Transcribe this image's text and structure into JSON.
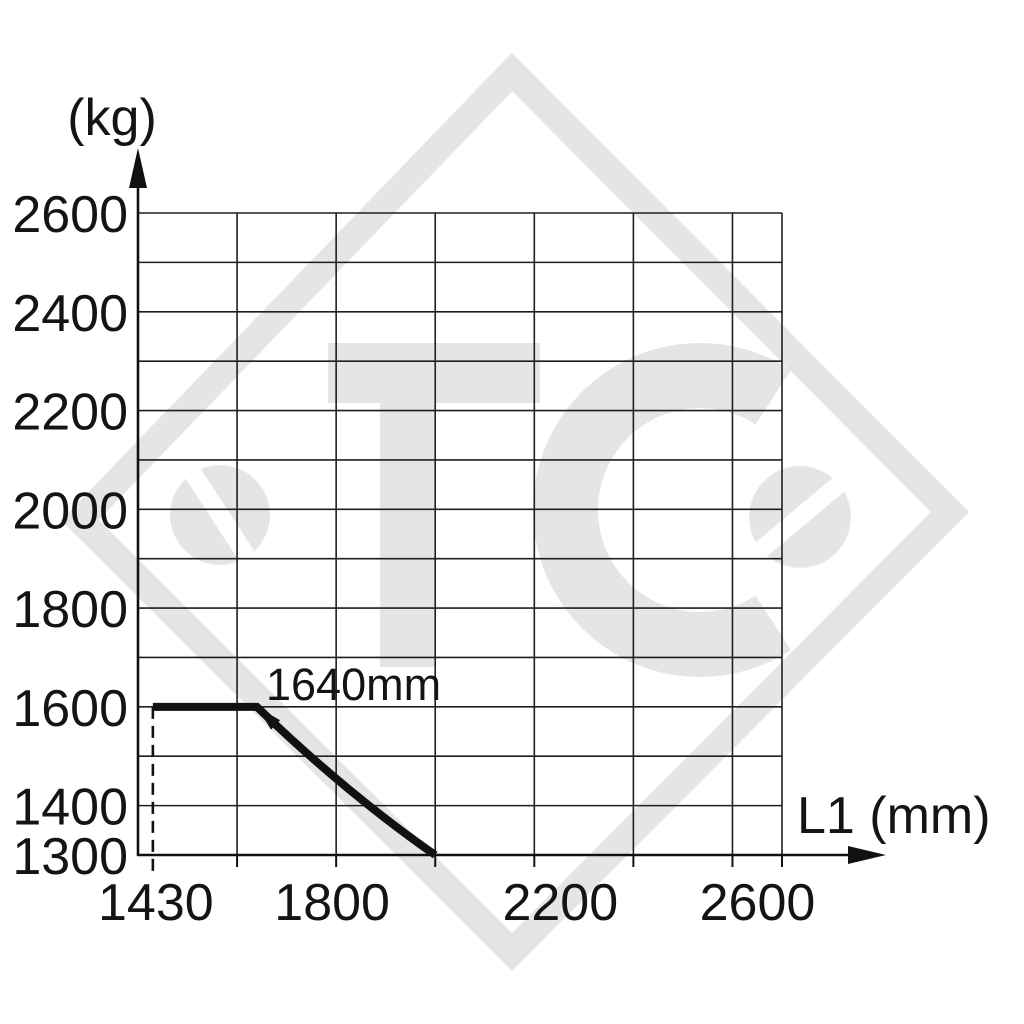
{
  "page": {
    "background": "#ffffff"
  },
  "watermark": {
    "text": "TC",
    "color": "#e5e5e7",
    "elements": [
      "diamond-outline",
      "letter-T",
      "letter-C",
      "slotted-screw-head-left",
      "slotted-screw-head-right"
    ]
  },
  "chart_data": {
    "type": "line",
    "title": "",
    "xlabel": "L1 (mm)",
    "ylabel": "(kg)",
    "xlim": [
      1400,
      2700
    ],
    "ylim": [
      1300,
      2600
    ],
    "grid": true,
    "legend": false,
    "x_gridlines_mm": [
      1400,
      1600,
      1800,
      2000,
      2200,
      2400,
      2600,
      2700
    ],
    "y_gridlines_kg": [
      1300,
      1400,
      1500,
      1600,
      1700,
      1800,
      1900,
      2000,
      2100,
      2200,
      2300,
      2400,
      2500,
      2600
    ],
    "x_tick_labels": [
      "1430",
      "1800",
      "2200",
      "2600"
    ],
    "x_tick_values": [
      1430,
      1800,
      2200,
      2600
    ],
    "y_tick_labels": [
      "2600",
      "2400",
      "2200",
      "2000",
      "1800",
      "1600",
      "1400",
      "1300"
    ],
    "y_tick_values": [
      2600,
      2400,
      2200,
      2000,
      1800,
      1600,
      1400,
      1300
    ],
    "series": [
      {
        "name": "permissible-load-vs-L1",
        "color": "#111111",
        "points_mm_kg": [
          [
            1430,
            1600
          ],
          [
            1640,
            1600
          ],
          [
            2000,
            1300
          ]
        ],
        "flat_segment_kg": 1600,
        "end_point_mm_kg": [
          2000,
          1300
        ]
      }
    ],
    "annotation": {
      "text": "1640mm",
      "points_to_mm_kg": [
        1640,
        1600
      ]
    },
    "reference_line": {
      "style": "dashed",
      "x_mm": 1430
    }
  }
}
